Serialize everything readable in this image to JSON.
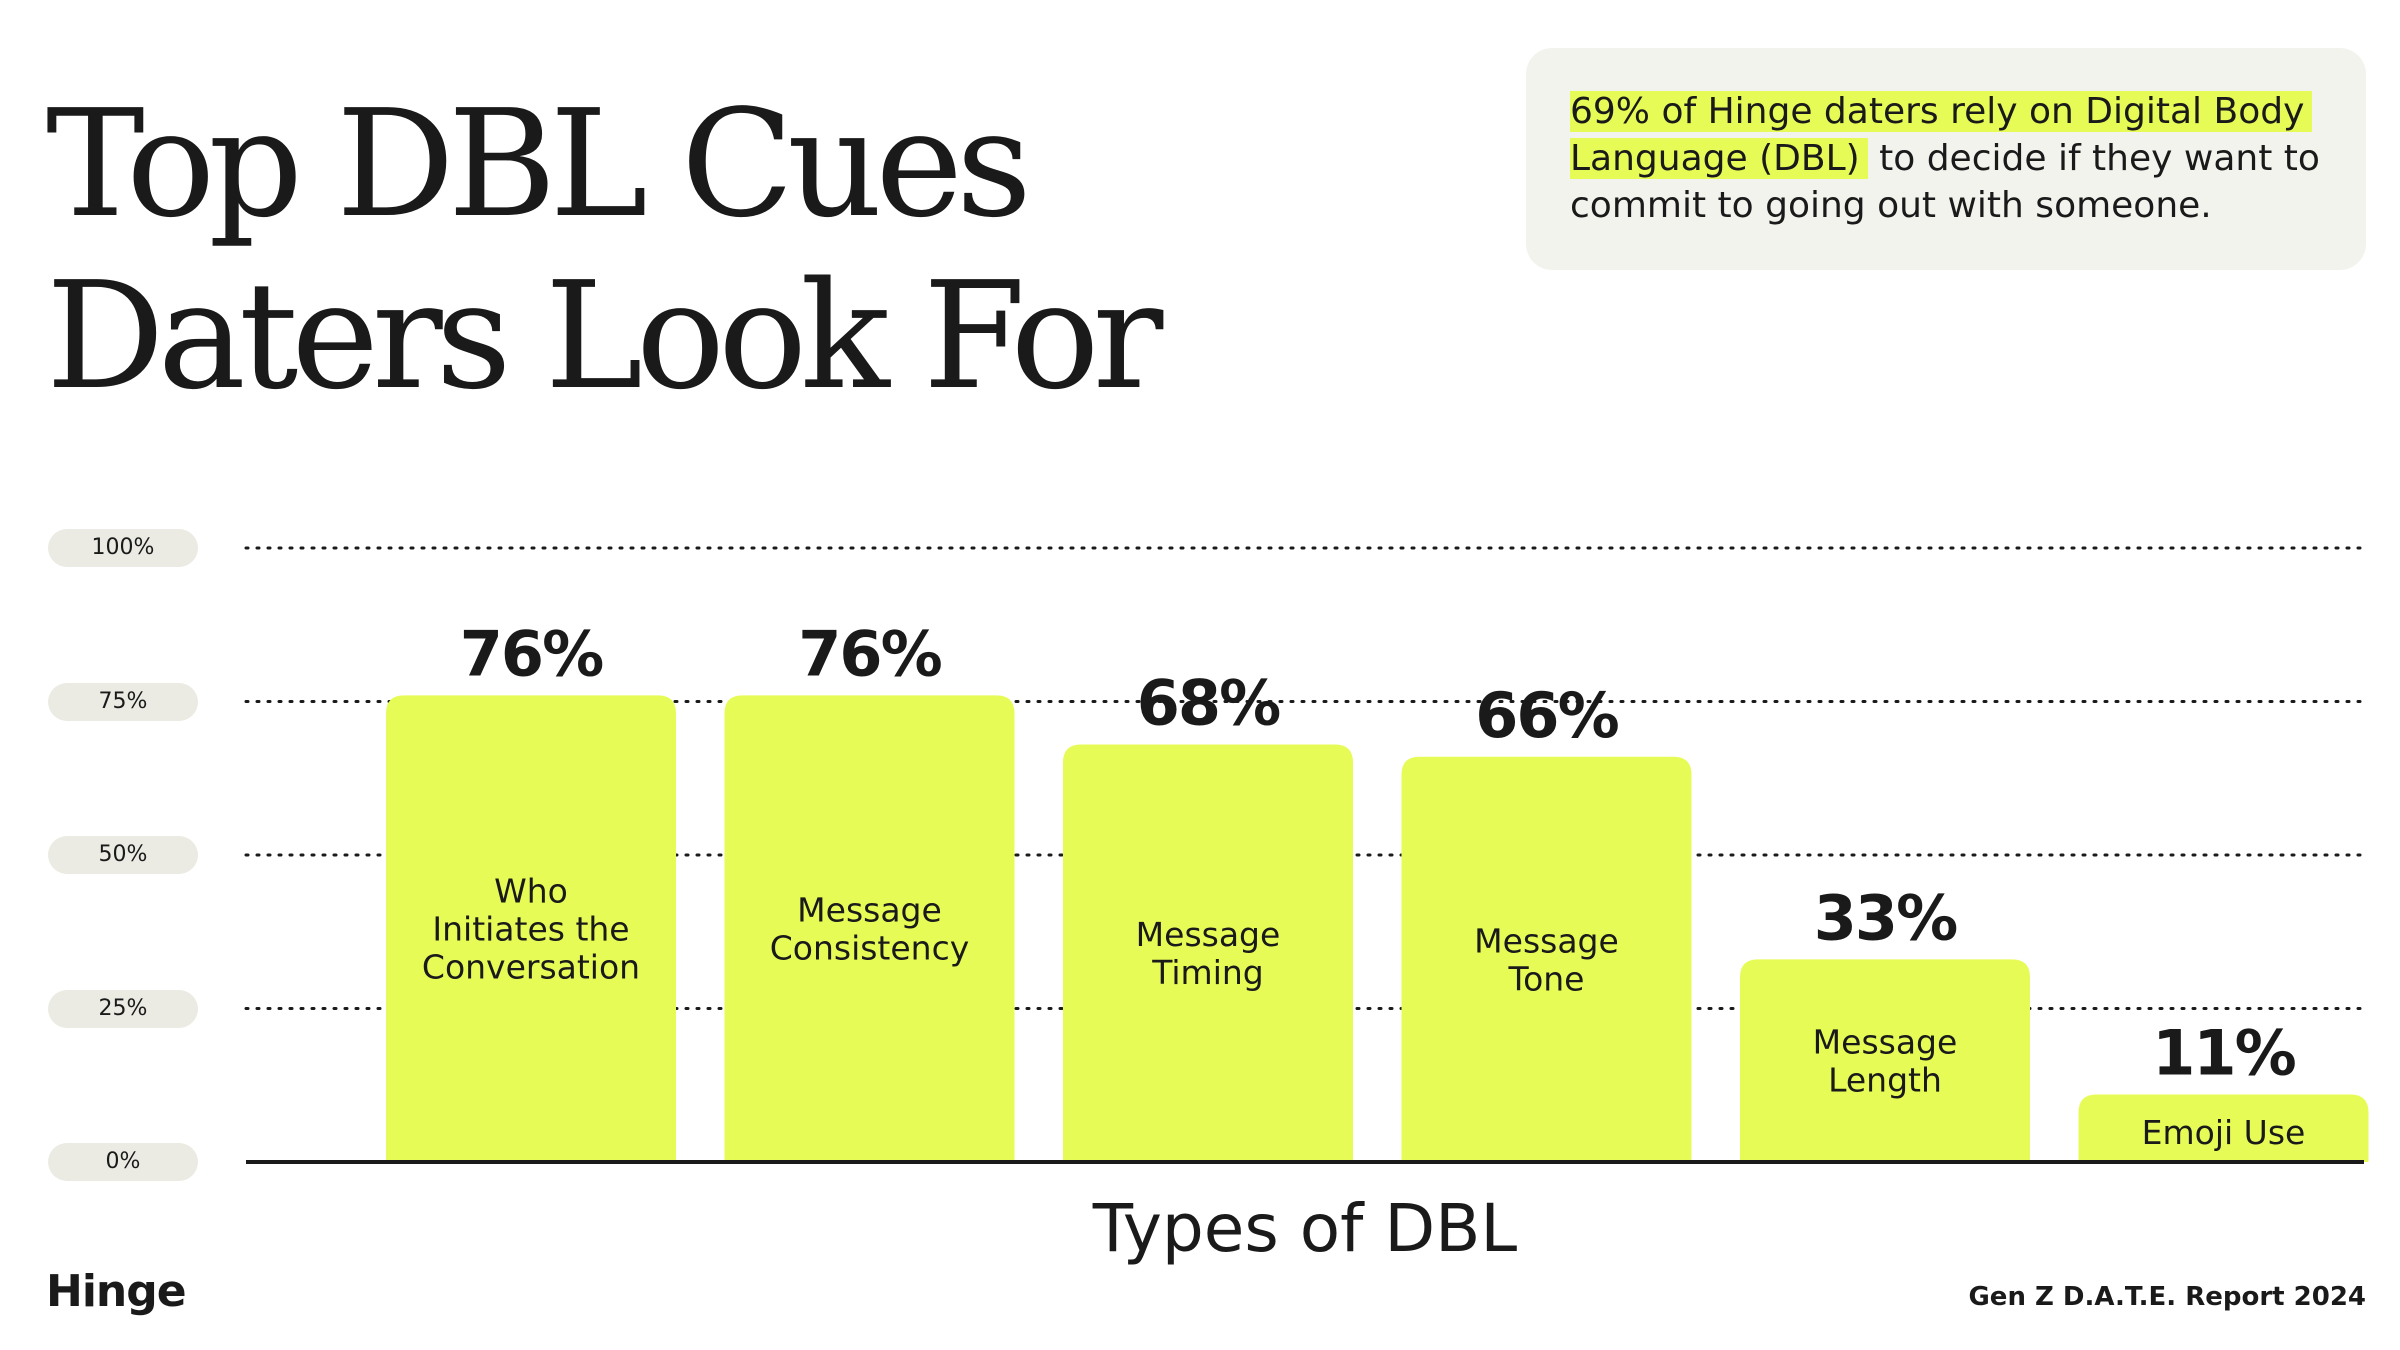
{
  "title_lines": [
    "Top DBL Cues",
    "Daters Look For"
  ],
  "callout": {
    "highlight_line1": "69% of Hinge daters rely on Digital Body",
    "highlight_line2": "Language (DBL)",
    "rest_line2": " to decide if they want to",
    "line3": "commit to going out with someone."
  },
  "brand": "Hinge",
  "source": "Gen Z D.A.T.E. Report 2024",
  "colors": {
    "bar": "#e7fb56",
    "text": "#1a1a1a",
    "pill": "#ebebe4",
    "callout_bg": "#f3f3ee"
  },
  "chart_data": {
    "type": "bar",
    "xlabel": "Types of DBL",
    "ylim": [
      0,
      100
    ],
    "yticks": [
      100,
      75,
      50,
      25,
      0
    ],
    "ytick_labels": [
      "100%",
      "75%",
      "50%",
      "25%",
      "0%"
    ],
    "grid": true,
    "categories": [
      [
        "Who",
        "Initiates the",
        "Conversation"
      ],
      [
        "Message",
        "Consistency"
      ],
      [
        "Message",
        "Timing"
      ],
      [
        "Message",
        "Tone"
      ],
      [
        "Message",
        "Length"
      ],
      [
        "Emoji Use"
      ]
    ],
    "values": [
      76,
      76,
      68,
      66,
      33,
      11
    ],
    "value_labels": [
      "76%",
      "76%",
      "68%",
      "66%",
      "33%",
      "11%"
    ]
  }
}
